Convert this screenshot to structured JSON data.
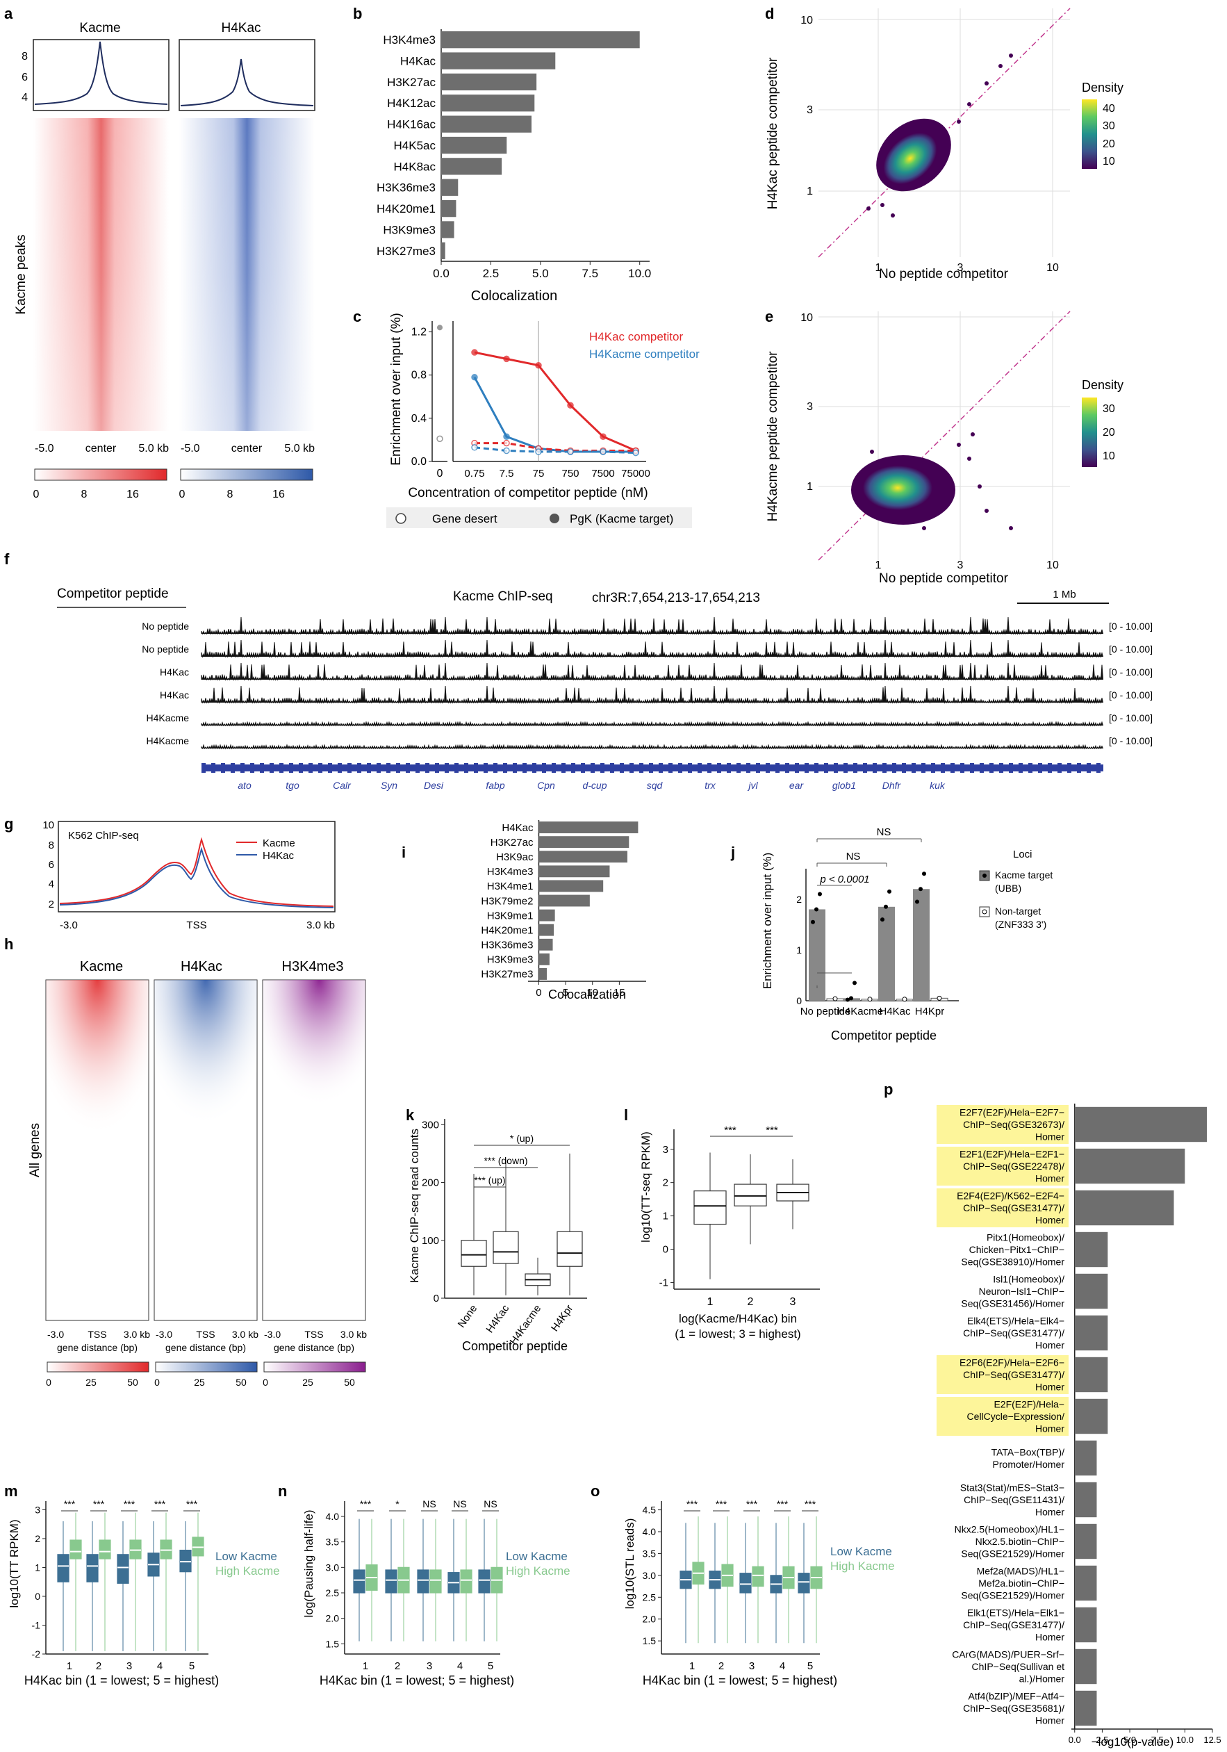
{
  "colors": {
    "red": "#e1292b",
    "blue": "#2e59a8",
    "purple": "#8a1e8e",
    "bar": "#6e6e6e",
    "box_blue": "#3c6f93",
    "box_green": "#88c98e",
    "yellow": "#fdf59a"
  },
  "panels": {
    "a": {
      "letter": "a",
      "col1": "Kacme",
      "col2": "H4Kac",
      "ylabel": "Kacme peaks",
      "yticks": [
        "8",
        "6",
        "4"
      ],
      "x_left": "-5.0",
      "x_center": "center",
      "x_right": "5.0 kb",
      "cb_ticks": [
        "0",
        "8",
        "16"
      ]
    },
    "b": {
      "letter": "b",
      "xlabel": "Colocalization"
    },
    "c": {
      "letter": "c",
      "ylabel": "Enrichment over input (%)",
      "xlabel": "Concentration of competitor peptide (nM)",
      "legend_red": "H4Kac competitor",
      "legend_blue": "H4Kacme competitor",
      "key_open": "Gene desert",
      "key_filled": "PgK (Kacme target)"
    },
    "d": {
      "letter": "d",
      "ylabel": "H4Kac peptide competitor",
      "xlabel": "No peptide competitor",
      "density": "Density",
      "cb": [
        "40",
        "30",
        "20",
        "10"
      ]
    },
    "e": {
      "letter": "e",
      "ylabel": "H4Kacme peptide competitor",
      "xlabel": "No peptide competitor",
      "density": "Density",
      "cb": [
        "30",
        "20",
        "10"
      ]
    },
    "f": {
      "letter": "f",
      "header": "Competitor peptide",
      "title": "Kacme ChIP-seq",
      "locus": "chr3R:7,654,213-17,654,213",
      "scale": "1 Mb",
      "tracks": [
        "No peptide",
        "No peptide",
        "H4Kac",
        "H4Kac",
        "H4Kacme",
        "H4Kacme"
      ],
      "range": "[0 - 10.00]",
      "genes": [
        "ato",
        "tgo",
        "Calr",
        "Syn",
        "Desi",
        "fabp",
        "Cpn",
        "d-cup",
        "sqd",
        "trx",
        "jvl",
        "ear",
        "glob1",
        "Dhfr",
        "kuk"
      ]
    },
    "g": {
      "letter": "g",
      "title": "K562 ChIP-seq",
      "leg1": "Kacme",
      "leg2": "H4Kac",
      "yticks": [
        "10",
        "8",
        "6",
        "4",
        "2"
      ],
      "x_left": "-3.0",
      "x_center": "TSS",
      "x_right": "3.0 kb"
    },
    "h": {
      "letter": "h",
      "cols": [
        "Kacme",
        "H4Kac",
        "H3K4me3"
      ],
      "ylabel": "All genes",
      "x_left": "-3.0",
      "x_center": "TSS",
      "x_right": "3.0 kb",
      "xlabel": "gene distance (bp)",
      "cb_ticks": [
        "0",
        "25",
        "50"
      ]
    },
    "i": {
      "letter": "i",
      "xlabel": "Colocalization"
    },
    "j": {
      "letter": "j",
      "ylabel": "Enrichment over input (%)",
      "xlabel": "Competitor peptide",
      "ns1": "NS",
      "ns2": "NS",
      "pval": "p < 0.0001",
      "loci": "Loci",
      "leg1a": "Kacme target",
      "leg1b": "(UBB)",
      "leg2a": "Non-target",
      "leg2b": "(ZNF333 3')"
    },
    "k": {
      "letter": "k",
      "ylabel": "Kacme ChIP-seq read counts",
      "xlabel": "Competitor peptide",
      "sig1": "* (up)",
      "sig2": "*** (down)",
      "sig3": "*** (up)"
    },
    "l": {
      "letter": "l",
      "ylabel": "log10(TT-seq RPKM)",
      "xlabel1": "log(Kacme/H4Kac) bin",
      "xlabel2": "(1 = lowest; 3 = highest)",
      "sig": "***"
    },
    "m": {
      "letter": "m",
      "ylabel": "log10(TT RPKM)",
      "xlabel": "H4Kac bin (1 = lowest; 5 = highest)",
      "low": "Low Kacme",
      "high": "High Kacme",
      "sig": [
        "***",
        "***",
        "***",
        "***",
        "***"
      ]
    },
    "n": {
      "letter": "n",
      "ylabel": "log(Pausing half-life)",
      "xlabel": "H4Kac bin (1 = lowest; 5 = highest)",
      "low": "Low Kacme",
      "high": "High Kacme",
      "sig": [
        "***",
        "*",
        "NS",
        "NS",
        "NS"
      ]
    },
    "o": {
      "letter": "o",
      "ylabel": "log10(STL reads)",
      "xlabel": "H4Kac bin (1 = lowest; 5 = highest)",
      "low": "Low Kacme",
      "high": "High Kacme",
      "sig": [
        "***",
        "***",
        "***",
        "***",
        "***"
      ]
    },
    "p": {
      "letter": "p",
      "xlabel": "−log10(p-value)"
    }
  },
  "chart_data": [
    {
      "panel": "b",
      "type": "bar",
      "orientation": "horizontal",
      "categories": [
        "H3K4me3",
        "H4Kac",
        "H3K27ac",
        "H4K12ac",
        "H4K16ac",
        "H4K5ac",
        "H4K8ac",
        "H3K36me3",
        "H4K20me1",
        "H3K9me3",
        "H3K27me3"
      ],
      "values": [
        10.0,
        5.75,
        4.8,
        4.7,
        4.55,
        3.3,
        3.05,
        0.85,
        0.75,
        0.65,
        0.2
      ],
      "xlim": [
        0,
        10.5
      ],
      "xticks": [
        "0.0",
        "2.5",
        "5.0",
        "7.5",
        "10.0"
      ],
      "xlabel": "Colocalization"
    },
    {
      "panel": "i",
      "type": "bar",
      "orientation": "horizontal",
      "categories": [
        "H4Kac",
        "H3K27ac",
        "H3K9ac",
        "H3K4me3",
        "H3K4me1",
        "H3K79me2",
        "H3K9me1",
        "H4K20me1",
        "H3K36me3",
        "H3K9me3",
        "H3K27me3"
      ],
      "values": [
        18.5,
        16.8,
        16.5,
        13.2,
        12.0,
        9.5,
        3.0,
        2.8,
        2.6,
        2.0,
        1.5
      ],
      "xlim": [
        -2,
        20
      ],
      "xticks": [
        "0",
        "5",
        "10",
        "15"
      ],
      "xlabel": "Colocalization"
    },
    {
      "panel": "c",
      "type": "line",
      "x": [
        "0.75",
        "7.5",
        "75",
        "750",
        "7500",
        "75000"
      ],
      "series": [
        {
          "name": "H4Kac competitor",
          "values": [
            1.01,
            0.95,
            0.89,
            0.52,
            0.23,
            0.1
          ]
        },
        {
          "name": "H4Kacme competitor",
          "values": [
            0.78,
            0.23,
            0.12,
            0.09,
            0.09,
            0.09
          ]
        },
        {
          "name": "H4Kac gene desert",
          "values": [
            0.17,
            0.17,
            0.12,
            0.1,
            0.1,
            0.1
          ]
        },
        {
          "name": "H4Kacme gene desert",
          "values": [
            0.13,
            0.1,
            0.09,
            0.09,
            0.09,
            0.08
          ]
        }
      ],
      "no_peptide": {
        "pgk": 1.24,
        "desert": 0.21
      },
      "ylim": [
        0,
        1.3
      ],
      "yticks": [
        "0.0",
        "0.4",
        "0.8",
        "1.2"
      ],
      "xlabel": "Concentration of competitor peptide (nM)",
      "ylabel": "Enrichment over input (%)"
    },
    {
      "panel": "j",
      "type": "bar",
      "categories": [
        "No peptide",
        "H4Kacme",
        "H4Kac",
        "H4Kpr"
      ],
      "series": [
        {
          "name": "Kacme target (UBB)",
          "values": [
            1.8,
            0.05,
            1.85,
            2.2
          ]
        },
        {
          "name": "Non-target (ZNF333 3')",
          "values": [
            0.04,
            0.03,
            0.03,
            0.05
          ]
        }
      ],
      "ylim": [
        0,
        2.6
      ],
      "yticks": [
        "0",
        "1",
        "2"
      ]
    },
    {
      "panel": "k",
      "type": "box",
      "categories": [
        "None",
        "H4Kac",
        "H4Kacme",
        "H4Kpr"
      ],
      "boxes": [
        {
          "lo": 5,
          "q1": 55,
          "med": 75,
          "q3": 100,
          "hi": 215
        },
        {
          "lo": 5,
          "q1": 60,
          "med": 80,
          "q3": 115,
          "hi": 240
        },
        {
          "lo": 5,
          "q1": 22,
          "med": 32,
          "q3": 42,
          "hi": 70
        },
        {
          "lo": 5,
          "q1": 55,
          "med": 78,
          "q3": 115,
          "hi": 250
        }
      ],
      "ylim": [
        0,
        310
      ],
      "yticks": [
        "0",
        "100",
        "200",
        "300"
      ]
    },
    {
      "panel": "l",
      "type": "box",
      "categories": [
        "1",
        "2",
        "3"
      ],
      "boxes": [
        {
          "lo": -0.9,
          "q1": 0.75,
          "med": 1.3,
          "q3": 1.75,
          "hi": 2.9
        },
        {
          "lo": 0.15,
          "q1": 1.3,
          "med": 1.6,
          "q3": 1.95,
          "hi": 2.85
        },
        {
          "lo": 0.6,
          "q1": 1.45,
          "med": 1.7,
          "q3": 1.95,
          "hi": 2.7
        }
      ],
      "ylim": [
        -1.2,
        3.6
      ],
      "yticks": [
        "-1",
        "0",
        "1",
        "2",
        "3"
      ]
    },
    {
      "panel": "m",
      "type": "box",
      "categories": [
        "1",
        "2",
        "3",
        "4",
        "5"
      ],
      "ylim": [
        -2,
        3.3
      ],
      "yticks": [
        "-2",
        "-1",
        "0",
        "1",
        "2",
        "3"
      ],
      "low": [
        {
          "lo": -1.9,
          "q1": 0.5,
          "med": 1.05,
          "q3": 1.45,
          "hi": 2.6
        },
        {
          "lo": -1.9,
          "q1": 0.5,
          "med": 1.05,
          "q3": 1.45,
          "hi": 2.6
        },
        {
          "lo": -1.9,
          "q1": 0.45,
          "med": 1.0,
          "q3": 1.45,
          "hi": 2.6
        },
        {
          "lo": -1.9,
          "q1": 0.7,
          "med": 1.1,
          "q3": 1.5,
          "hi": 2.6
        },
        {
          "lo": -1.9,
          "q1": 0.85,
          "med": 1.2,
          "q3": 1.6,
          "hi": 2.6
        }
      ],
      "high": [
        {
          "lo": -1.9,
          "q1": 1.3,
          "med": 1.55,
          "q3": 1.95,
          "hi": 2.9
        },
        {
          "lo": -1.9,
          "q1": 1.3,
          "med": 1.55,
          "q3": 1.95,
          "hi": 2.9
        },
        {
          "lo": -1.9,
          "q1": 1.3,
          "med": 1.6,
          "q3": 1.95,
          "hi": 2.9
        },
        {
          "lo": -1.9,
          "q1": 1.3,
          "med": 1.6,
          "q3": 1.95,
          "hi": 2.9
        },
        {
          "lo": -1.9,
          "q1": 1.4,
          "med": 1.7,
          "q3": 2.05,
          "hi": 2.9
        }
      ]
    },
    {
      "panel": "n",
      "type": "box",
      "categories": [
        "1",
        "2",
        "3",
        "4",
        "5"
      ],
      "ylim": [
        1.3,
        4.3
      ],
      "yticks": [
        "1.5",
        "2.0",
        "2.5",
        "3.0",
        "3.5",
        "4.0"
      ],
      "low": [
        {
          "lo": 1.55,
          "q1": 2.5,
          "med": 2.75,
          "q3": 2.95,
          "hi": 3.95
        },
        {
          "lo": 1.55,
          "q1": 2.5,
          "med": 2.75,
          "q3": 2.95,
          "hi": 3.95
        },
        {
          "lo": 1.55,
          "q1": 2.5,
          "med": 2.75,
          "q3": 2.95,
          "hi": 3.95
        },
        {
          "lo": 1.55,
          "q1": 2.5,
          "med": 2.7,
          "q3": 2.9,
          "hi": 3.95
        },
        {
          "lo": 1.55,
          "q1": 2.5,
          "med": 2.75,
          "q3": 2.95,
          "hi": 3.95
        }
      ],
      "high": [
        {
          "lo": 1.55,
          "q1": 2.55,
          "med": 2.8,
          "q3": 3.05,
          "hi": 3.95
        },
        {
          "lo": 1.55,
          "q1": 2.5,
          "med": 2.75,
          "q3": 3.0,
          "hi": 3.95
        },
        {
          "lo": 1.55,
          "q1": 2.5,
          "med": 2.75,
          "q3": 2.95,
          "hi": 3.95
        },
        {
          "lo": 1.55,
          "q1": 2.5,
          "med": 2.75,
          "q3": 2.95,
          "hi": 3.95
        },
        {
          "lo": 1.55,
          "q1": 2.5,
          "med": 2.75,
          "q3": 3.0,
          "hi": 3.95
        }
      ]
    },
    {
      "panel": "o",
      "type": "box",
      "categories": [
        "1",
        "2",
        "3",
        "4",
        "5"
      ],
      "ylim": [
        1.2,
        4.7
      ],
      "yticks": [
        "1.5",
        "2.0",
        "2.5",
        "3.0",
        "3.5",
        "4.0",
        "4.5"
      ],
      "low": [
        {
          "lo": 1.45,
          "q1": 2.7,
          "med": 2.9,
          "q3": 3.1,
          "hi": 4.2
        },
        {
          "lo": 1.45,
          "q1": 2.7,
          "med": 2.9,
          "q3": 3.1,
          "hi": 4.2
        },
        {
          "lo": 1.45,
          "q1": 2.6,
          "med": 2.8,
          "q3": 3.05,
          "hi": 4.2
        },
        {
          "lo": 1.45,
          "q1": 2.6,
          "med": 2.8,
          "q3": 3.0,
          "hi": 4.2
        },
        {
          "lo": 1.45,
          "q1": 2.6,
          "med": 2.85,
          "q3": 3.05,
          "hi": 4.2
        }
      ],
      "high": [
        {
          "lo": 1.45,
          "q1": 2.8,
          "med": 3.05,
          "q3": 3.3,
          "hi": 4.35
        },
        {
          "lo": 1.45,
          "q1": 2.75,
          "med": 3.0,
          "q3": 3.25,
          "hi": 4.35
        },
        {
          "lo": 1.45,
          "q1": 2.75,
          "med": 3.0,
          "q3": 3.2,
          "hi": 4.35
        },
        {
          "lo": 1.45,
          "q1": 2.7,
          "med": 2.95,
          "q3": 3.2,
          "hi": 4.35
        },
        {
          "lo": 1.45,
          "q1": 2.7,
          "med": 2.95,
          "q3": 3.2,
          "hi": 4.35
        }
      ]
    },
    {
      "panel": "p",
      "type": "bar",
      "orientation": "horizontal",
      "xlim": [
        -0.3,
        12.5
      ],
      "xticks": [
        "0.0",
        "2.5",
        "5.0",
        "7.5",
        "10.0",
        "12.5"
      ],
      "xlabel": "−log10(p-value)",
      "categories": [
        {
          "lines": [
            "E2F7(E2F)/Hela−E2F7−",
            "ChIP−Seq(GSE32673)/",
            "Homer"
          ],
          "hl": true
        },
        {
          "lines": [
            "E2F1(E2F)/Hela−E2F1−",
            "ChIP−Seq(GSE22478)/",
            "Homer"
          ],
          "hl": true
        },
        {
          "lines": [
            "E2F4(E2F)/K562−E2F4−",
            "ChIP−Seq(GSE31477)/",
            "Homer"
          ],
          "hl": true
        },
        {
          "lines": [
            "Pitx1(Homeobox)/",
            "Chicken−Pitx1−ChIP−",
            "Seq(GSE38910)/Homer"
          ],
          "hl": false
        },
        {
          "lines": [
            "Isl1(Homeobox)/",
            "Neuron−Isl1−ChIP−",
            "Seq(GSE31456)/Homer"
          ],
          "hl": false
        },
        {
          "lines": [
            "Elk4(ETS)/Hela−Elk4−",
            "ChIP−Seq(GSE31477)/",
            "Homer"
          ],
          "hl": false
        },
        {
          "lines": [
            "E2F6(E2F)/Hela−E2F6−",
            "ChIP−Seq(GSE31477)/",
            "Homer"
          ],
          "hl": true
        },
        {
          "lines": [
            "E2F(E2F)/Hela−",
            "CellCycle−Expression/",
            "Homer"
          ],
          "hl": true
        },
        {
          "lines": [
            "TATA−Box(TBP)/",
            "Promoter/Homer"
          ],
          "hl": false
        },
        {
          "lines": [
            "Stat3(Stat)/mES−Stat3−",
            "ChIP−Seq(GSE11431)/",
            "Homer"
          ],
          "hl": false
        },
        {
          "lines": [
            "Nkx2.5(Homeobox)/HL1−",
            "Nkx2.5.biotin−ChIP−",
            "Seq(GSE21529)/Homer"
          ],
          "hl": false
        },
        {
          "lines": [
            "Mef2a(MADS)/HL1−",
            "Mef2a.biotin−ChIP−",
            "Seq(GSE21529)/Homer"
          ],
          "hl": false
        },
        {
          "lines": [
            "Elk1(ETS)/Hela−Elk1−",
            "ChIP−Seq(GSE31477)/",
            "Homer"
          ],
          "hl": false
        },
        {
          "lines": [
            "CArG(MADS)/PUER−Srf−",
            "ChIP−Seq(Sullivan et",
            "al.)/Homer"
          ],
          "hl": false
        },
        {
          "lines": [
            "Atf4(bZIP)/MEF−Atf4−",
            "ChIP−Seq(GSE35681)/",
            "Homer"
          ],
          "hl": false
        }
      ],
      "values": [
        12.0,
        10.0,
        9.0,
        3.0,
        3.0,
        3.0,
        3.0,
        3.0,
        2.0,
        2.0,
        2.0,
        2.0,
        2.0,
        2.0,
        2.0
      ]
    }
  ]
}
